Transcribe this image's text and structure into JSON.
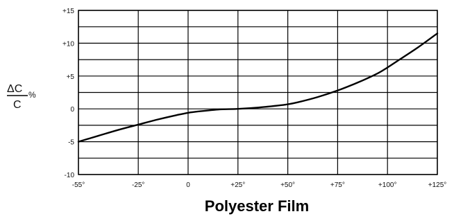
{
  "chart_data": {
    "type": "line",
    "title": "Polyester Film",
    "ylabel": {
      "numerator": "ΔC",
      "denominator": "C",
      "unit": "%"
    },
    "x_ticks": [
      "-55°",
      "-25°",
      "0",
      "+25°",
      "+50°",
      "+75°",
      "+100°",
      "+125°"
    ],
    "y_ticks": [
      "+15",
      "+10",
      "+5",
      "0",
      "-5",
      "-10"
    ],
    "x_tick_values": [
      -55,
      -25,
      0,
      25,
      50,
      75,
      100,
      125
    ],
    "y_tick_values": [
      15,
      10,
      5,
      0,
      -5,
      -10
    ],
    "xlim": [
      -55,
      125
    ],
    "ylim": [
      -10,
      15
    ],
    "y_minor_step": 2.5,
    "grid": true,
    "series": [
      {
        "x": [
          -55,
          -45,
          -35,
          -25,
          -15,
          -5,
          0,
          5,
          15,
          25,
          35,
          45,
          50,
          55,
          65,
          75,
          85,
          95,
          100,
          105,
          115,
          125
        ],
        "values": [
          -5,
          -4.1,
          -3.2,
          -2.4,
          -1.6,
          -0.9,
          -0.6,
          -0.4,
          -0.1,
          0,
          0.2,
          0.5,
          0.7,
          1.0,
          1.8,
          2.8,
          4.0,
          5.4,
          6.3,
          7.3,
          9.3,
          11.5
        ]
      }
    ],
    "colors": {
      "line": "#000000",
      "grid": "#000000",
      "background": "#ffffff"
    }
  }
}
